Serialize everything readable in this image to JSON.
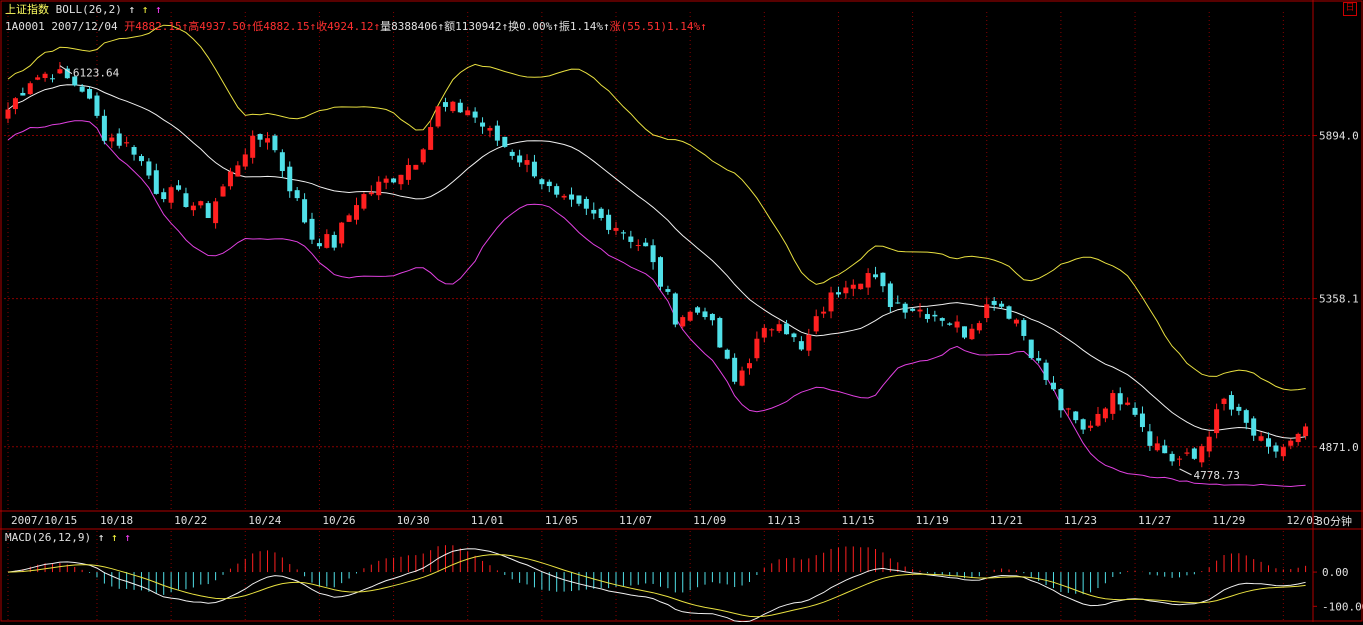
{
  "header": {
    "index_name": "上证指数",
    "indicator": "BOLL(26,2)",
    "code": "1A0001",
    "date": "2007/12/04",
    "quote": [
      {
        "label": "开",
        "value": "4882.15",
        "color": "#ff3030"
      },
      {
        "label": "高",
        "value": "4937.50",
        "color": "#ff3030"
      },
      {
        "label": "低",
        "value": "4882.15",
        "color": "#ff3030"
      },
      {
        "label": "收",
        "value": "4924.12",
        "color": "#ff3030"
      },
      {
        "label": "量",
        "value": "8388406",
        "color": "#e0e0e0"
      },
      {
        "label": "额",
        "value": "1130942",
        "color": "#e0e0e0"
      },
      {
        "label": "换",
        "value": "0.00%",
        "color": "#e0e0e0"
      },
      {
        "label": "振",
        "value": "1.14%",
        "color": "#e0e0e0"
      },
      {
        "label": "涨",
        "value": "(55.51)1.14%",
        "color": "#ff3030"
      }
    ]
  },
  "macd_header": "MACD(26,12,9)",
  "period_label": "30分钟",
  "colors": {
    "up": "#ff2020",
    "down": "#50e0e8",
    "upper": "#e8e040",
    "mid": "#f0f0f0",
    "lower": "#e040e0",
    "grid": "#880000",
    "frame": "#b00000",
    "axis_text": "#e0e0e0"
  },
  "chart_data": {
    "type": "candlestick",
    "price_ticks": [
      5894.0,
      5358.1,
      4871.0
    ],
    "price_range": [
      4660,
      6300
    ],
    "annotations": [
      {
        "label": "6123.64",
        "value": 6123.64
      },
      {
        "label": "4778.73",
        "value": 4778.73
      }
    ],
    "x_labels": [
      "2007/10/15",
      "10/18",
      "10/22",
      "10/24",
      "10/26",
      "10/30",
      "11/01",
      "11/05",
      "11/07",
      "11/09",
      "11/13",
      "11/15",
      "11/19",
      "11/21",
      "11/23",
      "11/27",
      "11/29",
      "12/03"
    ],
    "x_label_index": [
      0,
      12,
      22,
      32,
      42,
      52,
      62,
      72,
      82,
      92,
      102,
      112,
      122,
      132,
      142,
      152,
      162,
      172
    ],
    "close_anchors": [
      [
        0,
        5980
      ],
      [
        3,
        6080
      ],
      [
        6,
        6105
      ],
      [
        10,
        6050
      ],
      [
        13,
        5900
      ],
      [
        17,
        5850
      ],
      [
        20,
        5720
      ],
      [
        24,
        5680
      ],
      [
        27,
        5640
      ],
      [
        32,
        5850
      ],
      [
        35,
        5900
      ],
      [
        38,
        5730
      ],
      [
        41,
        5560
      ],
      [
        44,
        5540
      ],
      [
        47,
        5680
      ],
      [
        52,
        5760
      ],
      [
        55,
        5820
      ],
      [
        58,
        5980
      ],
      [
        62,
        5980
      ],
      [
        65,
        5900
      ],
      [
        68,
        5840
      ],
      [
        71,
        5780
      ],
      [
        74,
        5680
      ],
      [
        78,
        5640
      ],
      [
        82,
        5600
      ],
      [
        86,
        5520
      ],
      [
        90,
        5300
      ],
      [
        94,
        5320
      ],
      [
        98,
        5080
      ],
      [
        101,
        5210
      ],
      [
        104,
        5300
      ],
      [
        107,
        5180
      ],
      [
        110,
        5330
      ],
      [
        113,
        5420
      ],
      [
        116,
        5440
      ],
      [
        119,
        5350
      ],
      [
        122,
        5330
      ],
      [
        126,
        5300
      ],
      [
        129,
        5250
      ],
      [
        133,
        5360
      ],
      [
        136,
        5290
      ],
      [
        139,
        5140
      ],
      [
        142,
        5000
      ],
      [
        145,
        4920
      ],
      [
        148,
        5020
      ],
      [
        151,
        5040
      ],
      [
        154,
        4900
      ],
      [
        157,
        4830
      ],
      [
        160,
        4830
      ],
      [
        164,
        5020
      ],
      [
        167,
        4940
      ],
      [
        170,
        4850
      ],
      [
        173,
        4880
      ],
      [
        175,
        4915
      ]
    ],
    "macd_ticks": [
      0.0,
      -100.0
    ],
    "macd_range": [
      -140,
      120
    ]
  }
}
